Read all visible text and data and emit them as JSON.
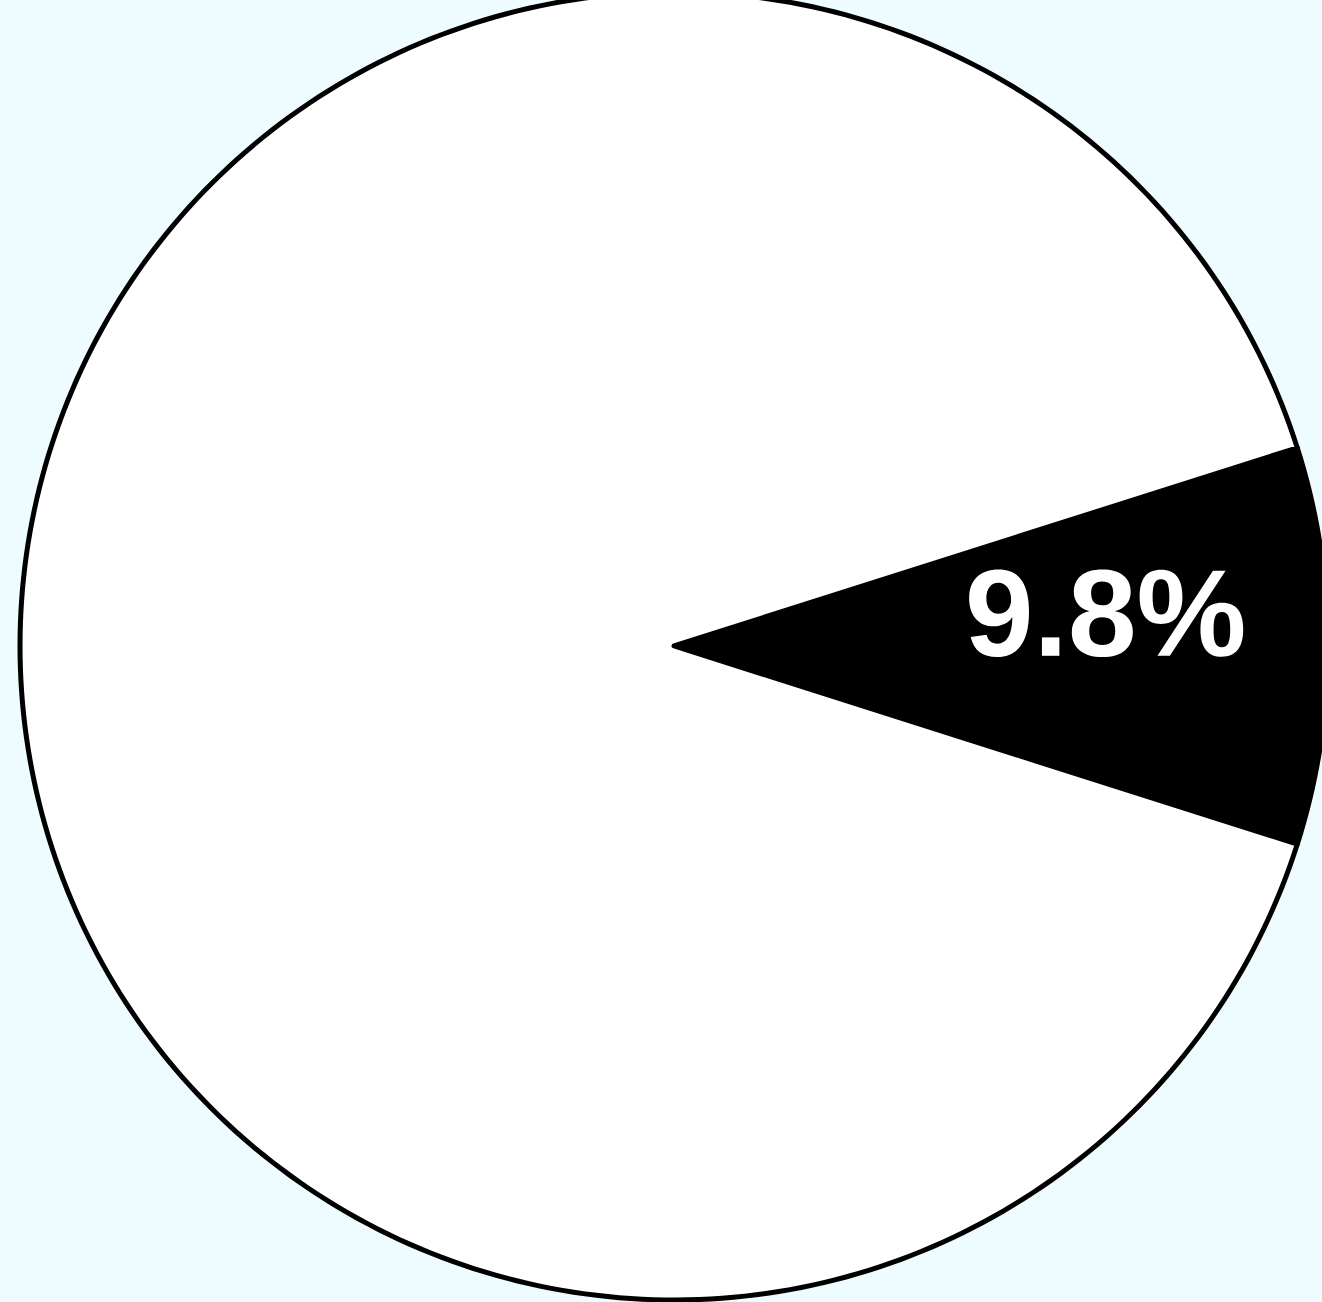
{
  "chart_data": {
    "type": "pie",
    "categories": [
      null,
      null
    ],
    "values": [
      9.8,
      90.2
    ],
    "colors": [
      "#000000",
      "#ffffff"
    ],
    "value_labels": [
      "9.8%",
      null
    ]
  }
}
